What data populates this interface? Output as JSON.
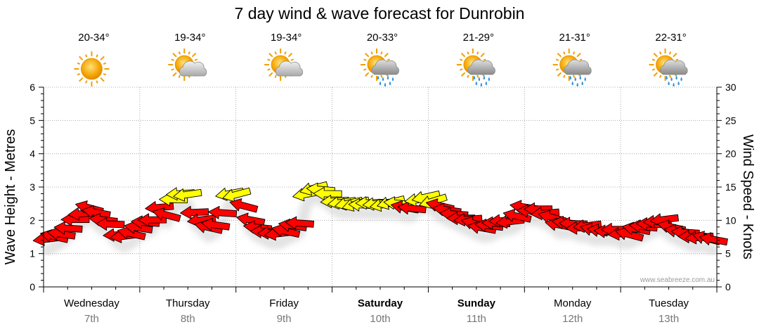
{
  "title": "7 day wind & wave forecast for Dunrobin",
  "watermark": "www.seabreeze.com.au",
  "colors": {
    "light_wind": "#ffff00",
    "strong_wind": "#ff0000",
    "grid": "#999999",
    "axis": "#000000",
    "shadow": "#cccccc"
  },
  "days": [
    {
      "name": "Wednesday",
      "date": "7th",
      "temp": "20-34°",
      "icon": "sunny-icon",
      "bold": false
    },
    {
      "name": "Thursday",
      "date": "8th",
      "temp": "19-34°",
      "icon": "partly-cloudy-icon",
      "bold": false
    },
    {
      "name": "Friday",
      "date": "9th",
      "temp": "19-34°",
      "icon": "partly-cloudy-icon",
      "bold": false
    },
    {
      "name": "Saturday",
      "date": "10th",
      "temp": "20-33°",
      "icon": "sun-cloud-rain-icon",
      "bold": true
    },
    {
      "name": "Sunday",
      "date": "11th",
      "temp": "21-29°",
      "icon": "sun-cloud-rain-icon",
      "bold": true
    },
    {
      "name": "Monday",
      "date": "12th",
      "temp": "21-31°",
      "icon": "sun-cloud-rain-icon",
      "bold": false
    },
    {
      "name": "Tuesday",
      "date": "13th",
      "temp": "22-31°",
      "icon": "sun-cloud-rain-icon",
      "bold": false
    }
  ],
  "chart_data": {
    "type": "line",
    "title": "7 day wind & wave forecast for Dunrobin",
    "ylabel_left": "Wave Height - Metres",
    "ylabel_right": "Wind Speed - Knots",
    "ylim_left": [
      0,
      6
    ],
    "ylim_right": [
      0,
      30
    ],
    "yticks_left": [
      "0",
      "1",
      "2",
      "3",
      "4",
      "5",
      "6"
    ],
    "yticks_right": [
      "0",
      "5",
      "10",
      "15",
      "20",
      "25",
      "30"
    ],
    "grid": true,
    "days": [
      "Wednesday",
      "Thursday",
      "Friday",
      "Saturday",
      "Sunday",
      "Monday",
      "Tuesday"
    ],
    "wind_knots": [
      7,
      7.5,
      8,
      9,
      10,
      11,
      12,
      11,
      10,
      9.5,
      8,
      7.5,
      8,
      9,
      9.5,
      10,
      12,
      11,
      13,
      14,
      14,
      11,
      10,
      9,
      9.5,
      11,
      14,
      14,
      12,
      10,
      9,
      8.5,
      8,
      8,
      8.5,
      9,
      9.5,
      14,
      15,
      14.5,
      14,
      13,
      12.5,
      12.5,
      12.5,
      12.5,
      12.5,
      12.5,
      12.5,
      12.5,
      12.5,
      12,
      12,
      13,
      13.5,
      13,
      12,
      11.5,
      11,
      10.5,
      10,
      9.5,
      9,
      9,
      9.5,
      10,
      10,
      10.5,
      12,
      11.5,
      11.5,
      11,
      10.5,
      9.5,
      9.5,
      9.5,
      9,
      9,
      8.5,
      8.5,
      8.5,
      8.5,
      8,
      8,
      8.5,
      9,
      9.5,
      10,
      10,
      9,
      8.5,
      8,
      7.5,
      7.5,
      7.5,
      7
    ]
  }
}
